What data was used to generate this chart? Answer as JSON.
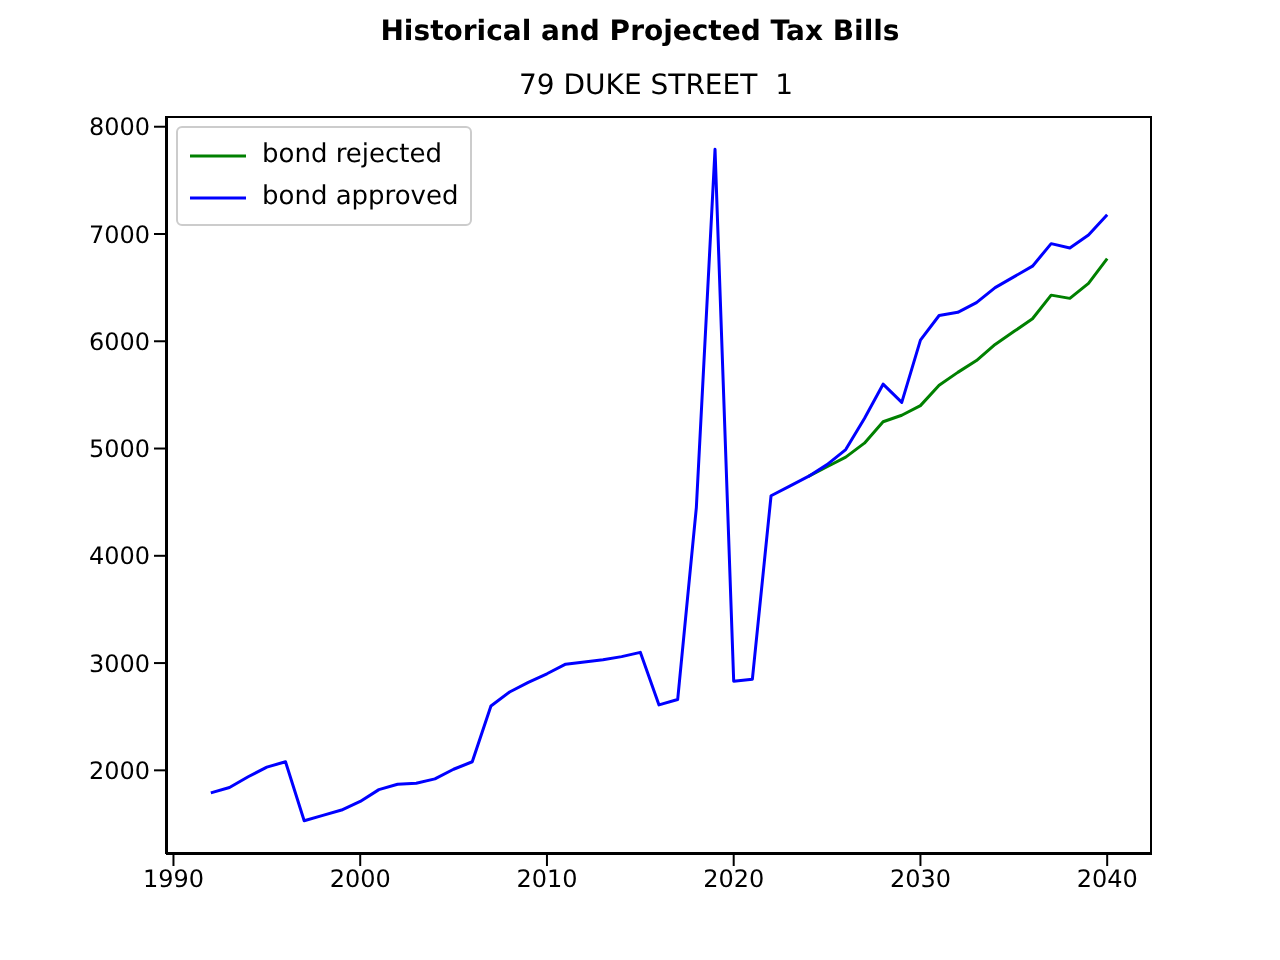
{
  "chart_data": {
    "type": "line",
    "title": "Historical and Projected Tax Bills",
    "subtitle": "79 DUKE STREET  1",
    "x": [
      1992,
      1993,
      1994,
      1995,
      1996,
      1997,
      1998,
      1999,
      2000,
      2001,
      2002,
      2003,
      2004,
      2005,
      2006,
      2007,
      2008,
      2009,
      2010,
      2011,
      2012,
      2013,
      2014,
      2015,
      2016,
      2017,
      2018,
      2019,
      2020,
      2021,
      2022,
      2023,
      2024,
      2025,
      2026,
      2027,
      2028,
      2029,
      2030,
      2031,
      2032,
      2033,
      2034,
      2035,
      2036,
      2037,
      2038,
      2039,
      2040
    ],
    "series": [
      {
        "name": "bond rejected",
        "color": "#008000",
        "values": [
          null,
          null,
          null,
          null,
          null,
          null,
          null,
          null,
          null,
          null,
          null,
          null,
          null,
          null,
          null,
          null,
          null,
          null,
          null,
          null,
          null,
          null,
          null,
          null,
          null,
          null,
          null,
          null,
          null,
          null,
          null,
          null,
          4740,
          4830,
          4920,
          5050,
          5250,
          5310,
          5400,
          5590,
          5710,
          5820,
          5970,
          6090,
          6210,
          6430,
          6400,
          6540,
          6770
        ]
      },
      {
        "name": "bond approved",
        "color": "#0000ff",
        "values": [
          1790,
          1840,
          1940,
          2030,
          2080,
          1530,
          1580,
          1630,
          1710,
          1820,
          1870,
          1880,
          1920,
          2010,
          2080,
          2600,
          2730,
          2820,
          2900,
          2990,
          3010,
          3030,
          3060,
          3100,
          2610,
          2660,
          4450,
          7790,
          2830,
          2850,
          4560,
          4650,
          4740,
          4850,
          4990,
          5280,
          5600,
          5430,
          6010,
          6240,
          6270,
          6360,
          6500,
          6600,
          6700,
          6910,
          6870,
          6990,
          7180
        ]
      }
    ],
    "xlim": [
      1989.6,
      2042.4
    ],
    "xticks": [
      1990,
      2000,
      2010,
      2020,
      2030,
      2040
    ],
    "ylim": [
      1220,
      8100
    ],
    "yticks": [
      2000,
      3000,
      4000,
      5000,
      6000,
      7000,
      8000
    ],
    "grid": false,
    "legend": "top left",
    "marker": "none",
    "line_style": "solid"
  }
}
